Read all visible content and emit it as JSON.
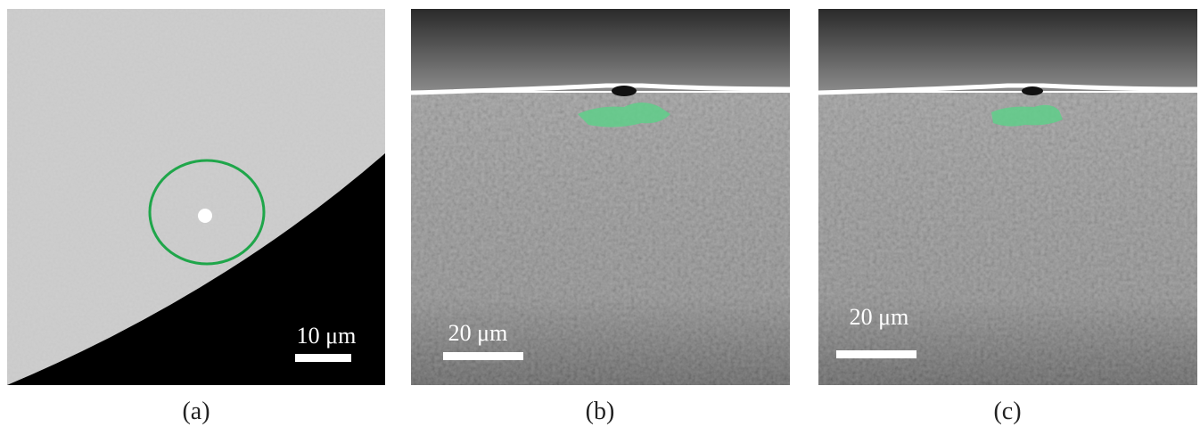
{
  "panels": [
    {
      "scale_label": "10 μm",
      "caption": "(a)"
    },
    {
      "scale_label": "20 μm",
      "caption": "(b)"
    },
    {
      "scale_label": "20 μm",
      "caption": "(c)"
    }
  ]
}
